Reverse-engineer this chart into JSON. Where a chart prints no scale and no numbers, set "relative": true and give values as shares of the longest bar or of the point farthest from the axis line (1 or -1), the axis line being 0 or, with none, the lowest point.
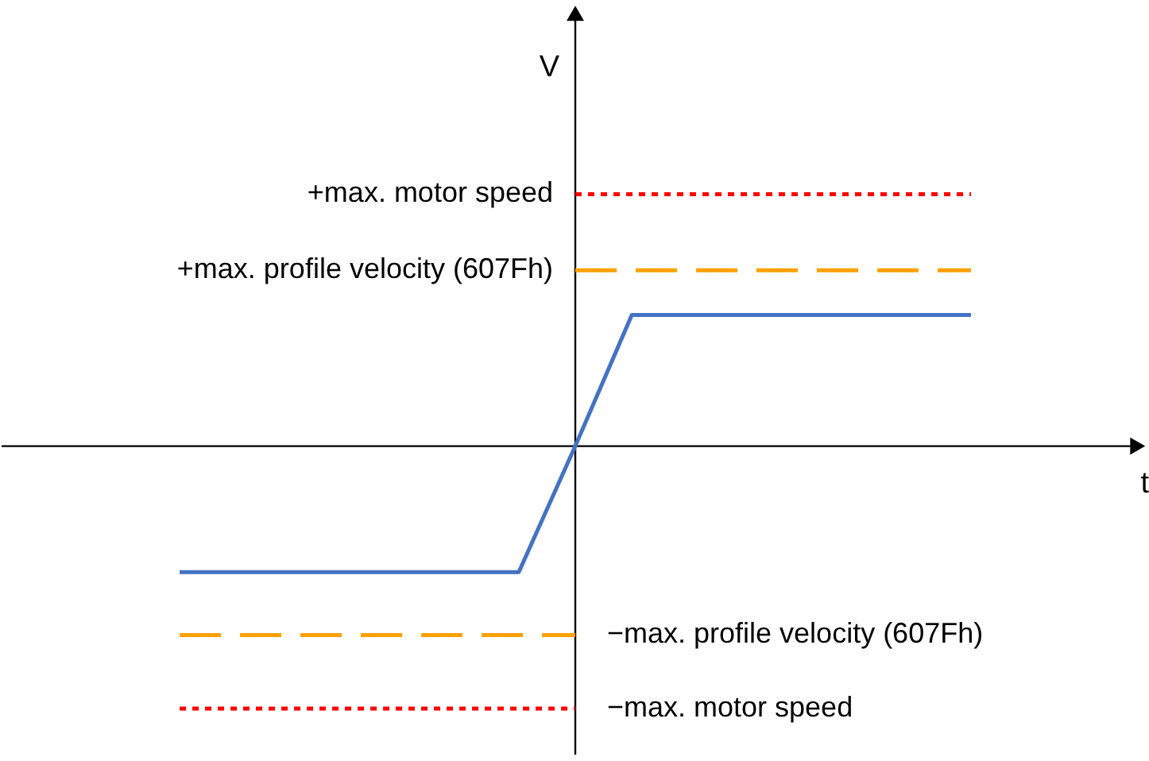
{
  "chart_data": {
    "type": "line",
    "relative": true,
    "xlabel": "t",
    "ylabel": "V",
    "marker": "none",
    "categories": [
      null,
      null,
      null,
      null,
      null,
      null,
      null,
      null,
      null,
      null,
      null,
      null,
      null,
      null,
      null
    ],
    "series": [
      {
        "color": "#4472c4",
        "line_style": "solid",
        "values": [
          -0.48,
          -0.48,
          -0.48,
          -0.48,
          -0.48,
          -0.48,
          -0.48,
          0,
          0.5,
          0.5,
          0.5,
          0.5,
          0.5,
          0.5,
          0.5
        ]
      },
      {
        "name": "+max. motor speed",
        "color": "#ff0000",
        "line_style": "dotted",
        "values": [
          null,
          null,
          null,
          null,
          null,
          null,
          null,
          0.96,
          0.96,
          0.96,
          0.96,
          0.96,
          0.96,
          0.96,
          0.96
        ]
      },
      {
        "name": "+max. profile velocity (607Fh)",
        "color": "#ffa000",
        "line_style": "dashed",
        "values": [
          null,
          null,
          null,
          null,
          null,
          null,
          null,
          0.67,
          0.67,
          0.67,
          0.67,
          0.67,
          0.67,
          0.67,
          0.67
        ]
      },
      {
        "name": "−max. profile velocity (607Fh)",
        "color": "#ffa000",
        "line_style": "dashed",
        "values": [
          -0.72,
          -0.72,
          -0.72,
          -0.72,
          -0.72,
          -0.72,
          -0.72,
          -0.72,
          null,
          null,
          null,
          null,
          null,
          null,
          null
        ]
      },
      {
        "name": "−max. motor speed",
        "color": "#ff0000",
        "line_style": "dotted",
        "values": [
          -1,
          -1,
          -1,
          -1,
          -1,
          -1,
          -1,
          -1,
          null,
          null,
          null,
          null,
          null,
          null,
          null
        ]
      }
    ]
  }
}
